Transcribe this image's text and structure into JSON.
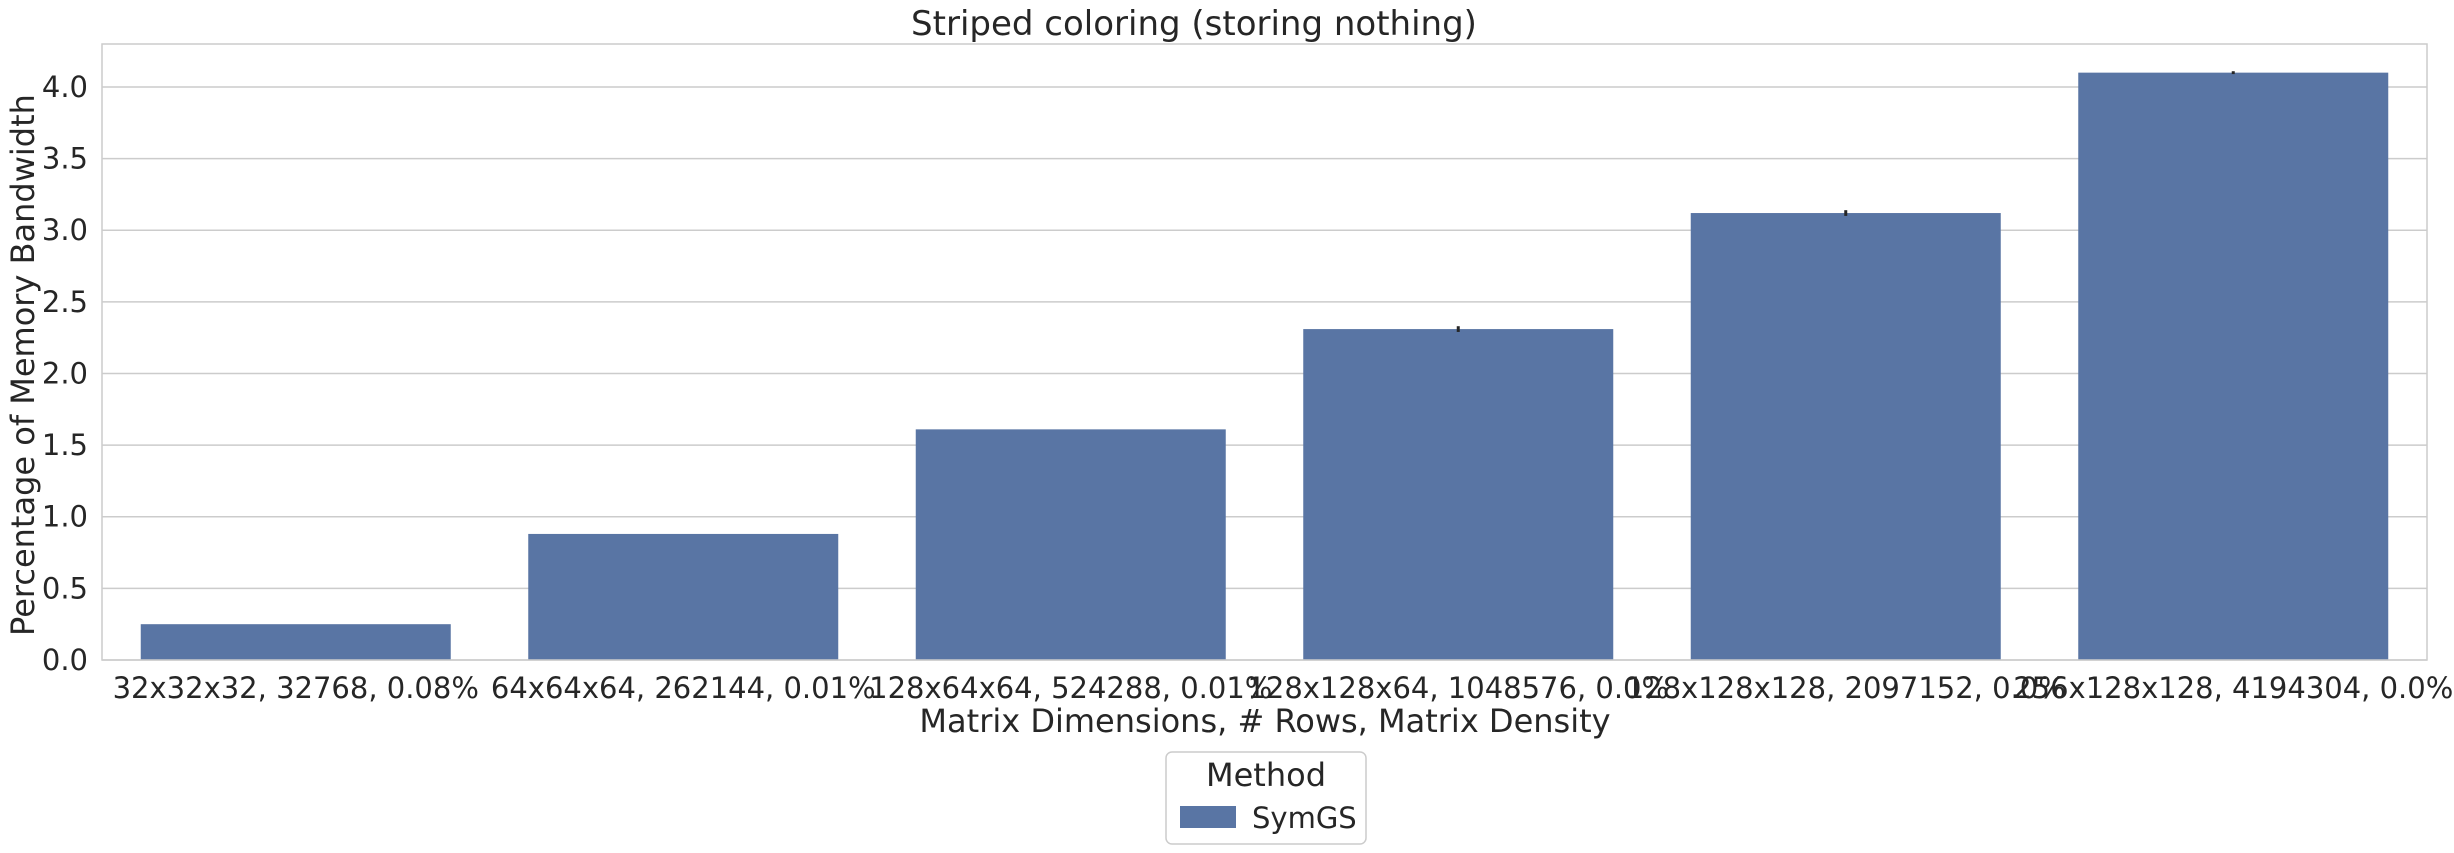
{
  "chart_data": {
    "type": "bar",
    "title": "Striped coloring (storing nothing)",
    "xlabel": "Matrix Dimensions, # Rows, Matrix Density",
    "ylabel": "Percentage of Memory Bandwidth",
    "categories": [
      "32x32x32, 32768, 0.08%",
      "64x64x64, 262144, 0.01%",
      "128x64x64, 524288, 0.01%",
      "128x128x64, 1048576, 0.0%",
      "128x128x128, 2097152, 0.0%",
      "256x128x128, 4194304, 0.0%"
    ],
    "series": [
      {
        "name": "SymGS",
        "values": [
          0.25,
          0.88,
          1.61,
          2.31,
          3.12,
          4.1
        ],
        "error": [
          0.0,
          0.0,
          0.0,
          0.02,
          0.02,
          0.01
        ]
      }
    ],
    "ylim": [
      0,
      4.3
    ],
    "yticks": [
      0.0,
      0.5,
      1.0,
      1.5,
      2.0,
      2.5,
      3.0,
      3.5,
      4.0
    ],
    "grid": true,
    "legend": {
      "title": "Method",
      "placement": "below"
    },
    "colors": {
      "bar": "#5975a4",
      "grid": "#cccccc",
      "axes": "#cccccc",
      "text": "#262626"
    }
  }
}
